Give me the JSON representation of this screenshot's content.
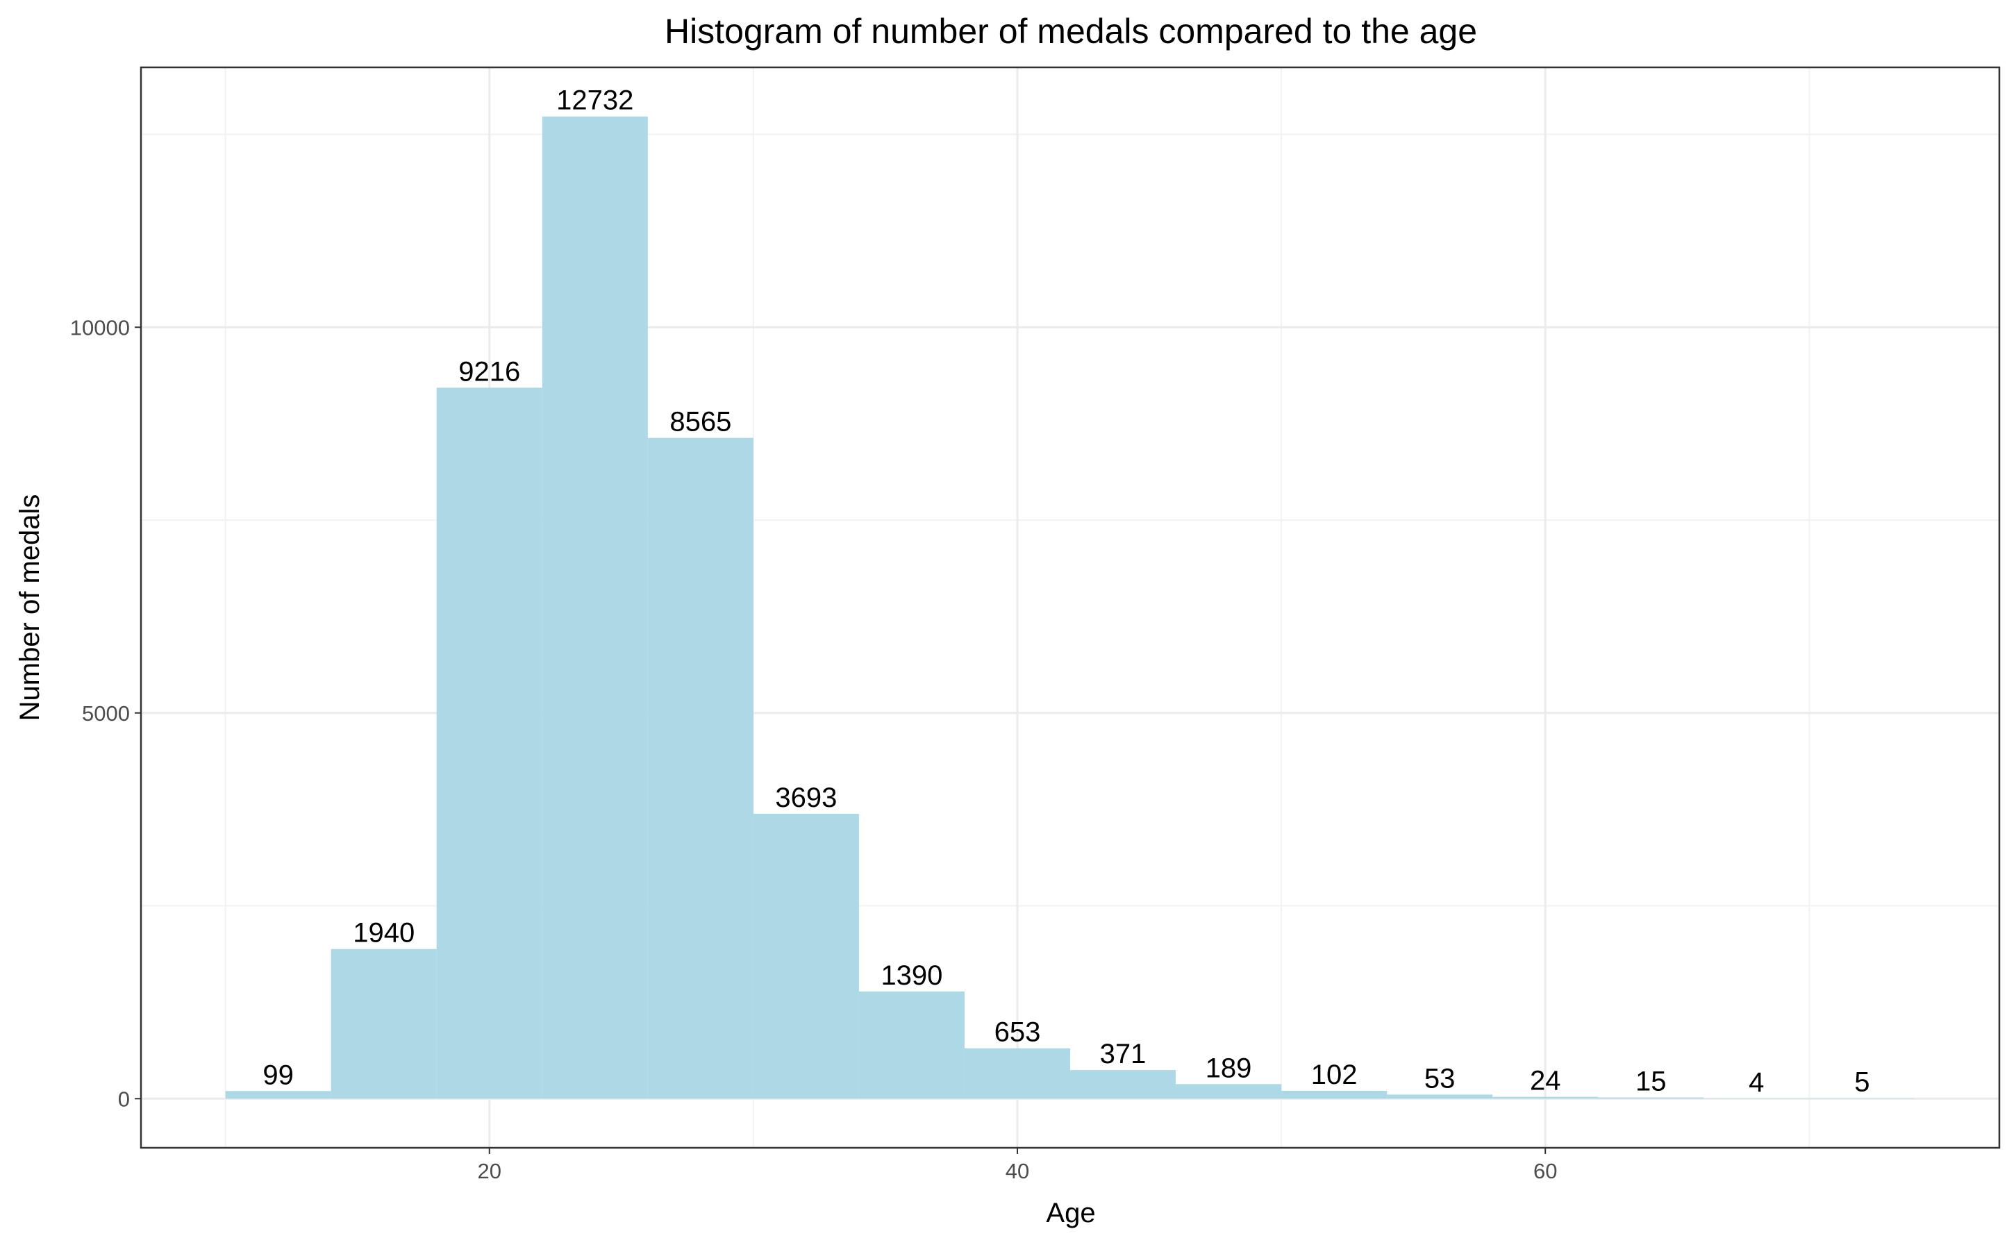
{
  "chart_data": {
    "type": "bar",
    "title": "Histogram of number of medals compared to the age",
    "xlabel": "Age",
    "ylabel": "Number of medals",
    "bin_width": 4,
    "bins": [
      {
        "x0": 10,
        "x1": 14,
        "value": 99
      },
      {
        "x0": 14,
        "x1": 18,
        "value": 1940
      },
      {
        "x0": 18,
        "x1": 22,
        "value": 9216
      },
      {
        "x0": 22,
        "x1": 26,
        "value": 12732
      },
      {
        "x0": 26,
        "x1": 30,
        "value": 8565
      },
      {
        "x0": 30,
        "x1": 34,
        "value": 3693
      },
      {
        "x0": 34,
        "x1": 38,
        "value": 1390
      },
      {
        "x0": 38,
        "x1": 42,
        "value": 653
      },
      {
        "x0": 42,
        "x1": 46,
        "value": 371
      },
      {
        "x0": 46,
        "x1": 50,
        "value": 189
      },
      {
        "x0": 50,
        "x1": 54,
        "value": 102
      },
      {
        "x0": 54,
        "x1": 58,
        "value": 53
      },
      {
        "x0": 58,
        "x1": 62,
        "value": 24
      },
      {
        "x0": 62,
        "x1": 66,
        "value": 15
      },
      {
        "x0": 66,
        "x1": 70,
        "value": 4
      },
      {
        "x0": 70,
        "x1": 74,
        "value": 5
      }
    ],
    "xlim": [
      6.8,
      77.2
    ],
    "ylim": [
      -636.6,
      13368.6
    ],
    "x_ticks": [
      20,
      40,
      60
    ],
    "x_tick_labels": [
      "20",
      "40",
      "60"
    ],
    "x_minor_ticks": [
      10,
      30,
      50,
      70
    ],
    "y_ticks": [
      0,
      5000,
      10000
    ],
    "y_tick_labels": [
      "0",
      "5000",
      "10000"
    ],
    "y_minor_ticks": [
      2500,
      7500,
      12500
    ],
    "grid": true,
    "legend": "none",
    "bar_color": "#add8e6"
  }
}
